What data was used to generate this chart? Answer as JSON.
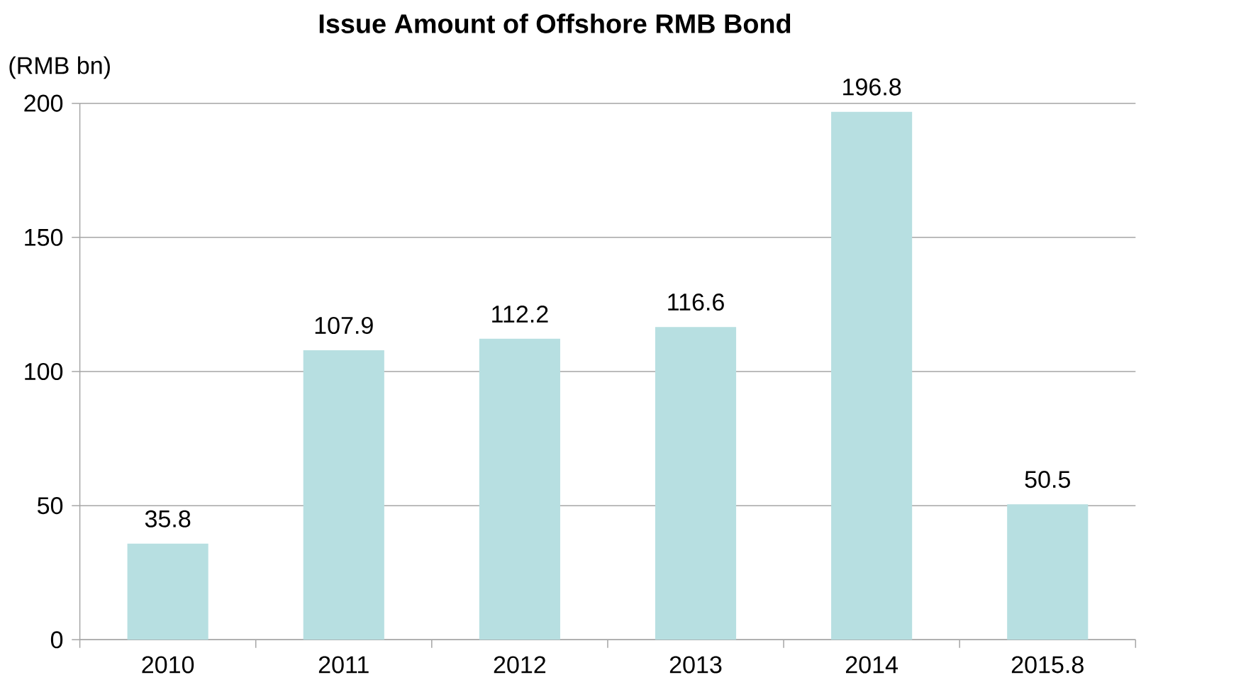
{
  "chart_data": {
    "type": "bar",
    "title": "Issue Amount of Offshore RMB Bond",
    "ylabel": "(RMB bn)",
    "categories": [
      "2010",
      "2011",
      "2012",
      "2013",
      "2014",
      "2015.8"
    ],
    "values": [
      35.8,
      107.9,
      112.2,
      116.6,
      196.8,
      50.5
    ],
    "color": "#b7dfe1",
    "ylim": [
      0,
      200
    ],
    "yticks": [
      0,
      50,
      100,
      150,
      200
    ],
    "grid": "y",
    "data_labels": true
  }
}
